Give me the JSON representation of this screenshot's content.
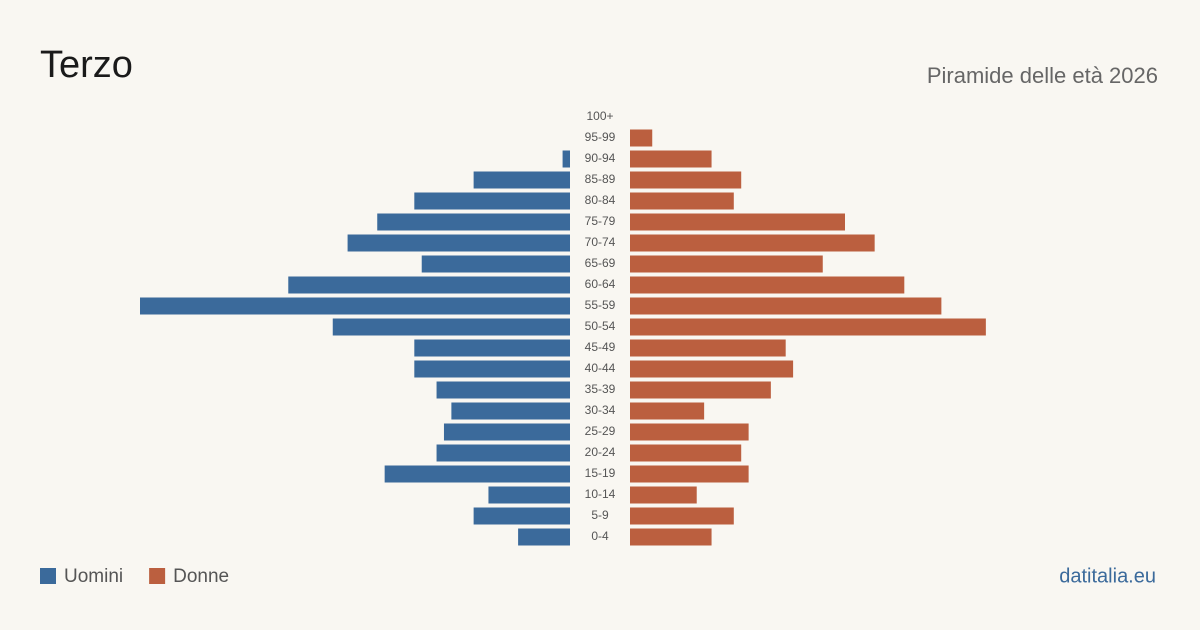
{
  "chart_data": {
    "type": "pyramid",
    "title": "Terzo",
    "subtitle": "Piramide delle età 2026",
    "source": "datitalia.eu",
    "categories": [
      "100+",
      "95-99",
      "90-94",
      "85-89",
      "80-84",
      "75-79",
      "70-74",
      "65-69",
      "60-64",
      "55-59",
      "50-54",
      "45-49",
      "40-44",
      "35-39",
      "30-34",
      "25-29",
      "20-24",
      "15-19",
      "10-14",
      "5-9",
      "0-4"
    ],
    "series": [
      {
        "name": "Uomini",
        "color": "#3b6a9b",
        "values": [
          0,
          0,
          1,
          13,
          21,
          26,
          30,
          20,
          38,
          58,
          32,
          21,
          21,
          18,
          16,
          17,
          18,
          25,
          11,
          13,
          7
        ]
      },
      {
        "name": "Donne",
        "color": "#bb5f3f",
        "values": [
          0,
          3,
          11,
          15,
          14,
          29,
          33,
          26,
          37,
          42,
          48,
          21,
          22,
          19,
          10,
          16,
          15,
          16,
          9,
          14,
          11
        ]
      }
    ]
  }
}
